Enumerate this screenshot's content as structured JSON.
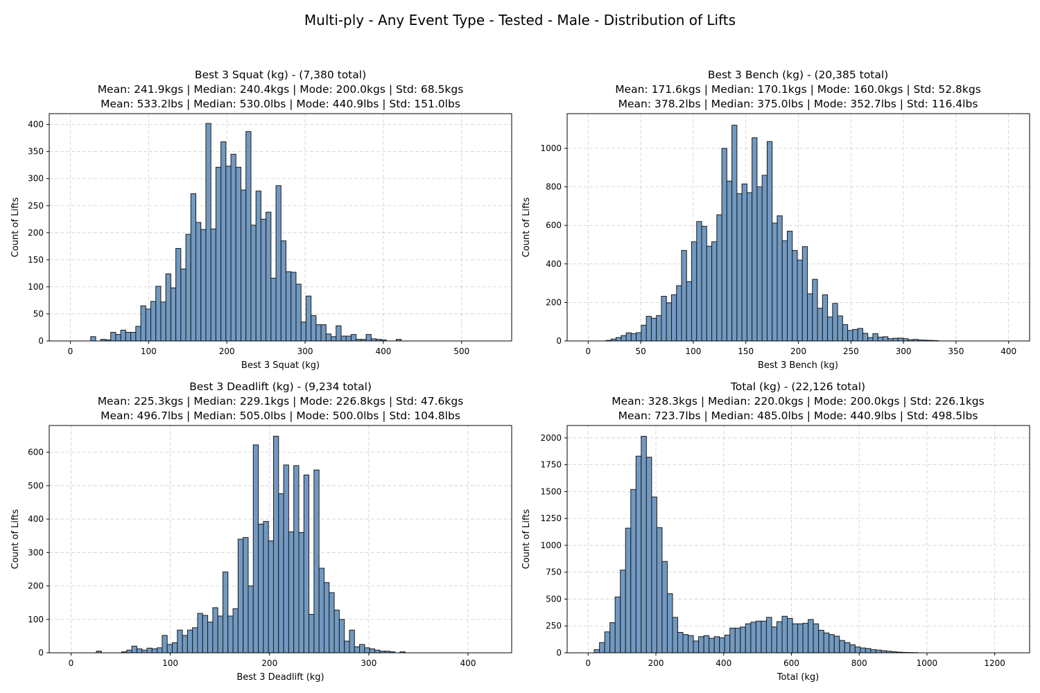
{
  "suptitle": "Multi-ply - Any Event Type - Tested - Male - Distribution of Lifts",
  "style": {
    "bar_color": "#7199c1",
    "edge_color": "#1a1a1a"
  },
  "chart_data": [
    {
      "type": "bar",
      "title_lines": [
        "Best 3 Squat (kg) - (7,380 total)",
        "Mean: 241.9kgs | Median: 240.4kgs | Mode: 200.0kgs | Std: 68.5kgs",
        "Mean: 533.2lbs | Median: 530.0lbs | Mode: 440.9lbs | Std: 151.0lbs"
      ],
      "xlabel": "Best 3 Squat (kg)",
      "ylabel": "Count of Lifts",
      "xlim": [
        -27,
        564
      ],
      "ylim": [
        0,
        420
      ],
      "xticks": [
        0,
        100,
        200,
        300,
        400,
        500
      ],
      "yticks": [
        0,
        50,
        100,
        150,
        200,
        250,
        300,
        350,
        400
      ],
      "bin_start": 26,
      "bin_width": 6.4,
      "values": [
        8,
        0,
        3,
        2,
        16,
        12,
        20,
        16,
        16,
        27,
        65,
        59,
        73,
        101,
        72,
        124,
        98,
        171,
        133,
        197,
        272,
        219,
        206,
        402,
        207,
        321,
        368,
        323,
        345,
        321,
        279,
        387,
        214,
        277,
        225,
        238,
        116,
        287,
        185,
        128,
        127,
        105,
        35,
        83,
        47,
        30,
        30,
        13,
        8,
        28,
        9,
        9,
        12,
        3,
        3,
        12,
        4,
        3,
        2,
        0,
        0,
        3,
        0,
        0,
        0,
        0,
        0,
        0,
        0,
        0,
        0,
        0,
        0,
        0,
        0,
        0,
        0,
        0,
        0,
        0
      ],
      "grid": true
    },
    {
      "type": "bar",
      "title_lines": [
        "Best 3 Bench (kg) - (20,385 total)",
        "Mean: 171.6kgs | Median: 170.1kgs | Mode: 160.0kgs | Std: 52.8kgs",
        "Mean: 378.2lbs | Median: 375.0lbs | Mode: 352.7lbs | Std: 116.4lbs"
      ],
      "xlabel": "Best 3 Bench (kg)",
      "ylabel": "Count of Lifts",
      "xlim": [
        -20,
        420
      ],
      "ylim": [
        0,
        1180
      ],
      "xticks": [
        0,
        50,
        100,
        150,
        200,
        250,
        300,
        350,
        400
      ],
      "yticks": [
        0,
        200,
        400,
        600,
        800,
        1000
      ],
      "bin_start": 17,
      "bin_width": 4.79,
      "values": [
        3,
        10,
        18,
        28,
        42,
        38,
        43,
        82,
        128,
        118,
        132,
        232,
        198,
        240,
        287,
        470,
        308,
        515,
        620,
        595,
        492,
        515,
        655,
        1000,
        830,
        1120,
        765,
        815,
        770,
        1055,
        800,
        860,
        1035,
        612,
        650,
        520,
        570,
        470,
        420,
        490,
        245,
        320,
        170,
        240,
        125,
        195,
        130,
        85,
        55,
        60,
        65,
        40,
        18,
        38,
        20,
        22,
        12,
        14,
        15,
        12,
        6,
        8,
        5,
        4,
        3,
        2,
        0,
        0,
        0,
        0,
        0,
        0,
        0,
        0,
        0,
        0,
        0,
        0,
        0,
        0
      ],
      "grid": true
    },
    {
      "type": "bar",
      "title_lines": [
        "Best 3 Deadlift (kg) - (9,234 total)",
        "Mean: 225.3kgs | Median: 229.1kgs | Mode: 226.8kgs | Std: 47.6kgs",
        "Mean: 496.7lbs | Median: 505.0lbs | Mode: 500.0lbs | Std: 104.8lbs"
      ],
      "xlabel": "Best 3 Deadlift (kg)",
      "ylabel": "Count of Lifts",
      "xlim": [
        -22,
        444
      ],
      "ylim": [
        0,
        680
      ],
      "xticks": [
        0,
        100,
        200,
        300,
        400
      ],
      "yticks": [
        0,
        100,
        200,
        300,
        400,
        500,
        600
      ],
      "bin_start": 0,
      "bin_width": 5.1,
      "values": [
        0,
        0,
        0,
        0,
        0,
        5,
        0,
        0,
        0,
        0,
        3,
        8,
        20,
        12,
        8,
        14,
        12,
        15,
        52,
        25,
        30,
        68,
        52,
        68,
        75,
        118,
        112,
        92,
        135,
        110,
        242,
        110,
        132,
        340,
        345,
        200,
        622,
        385,
        393,
        335,
        648,
        476,
        562,
        362,
        560,
        360,
        532,
        115,
        547,
        253,
        210,
        180,
        128,
        100,
        35,
        68,
        18,
        25,
        15,
        12,
        8,
        5,
        5,
        3,
        0,
        3,
        0,
        0,
        0,
        0,
        0,
        0,
        0,
        0,
        0,
        0,
        0,
        0,
        0,
        0
      ],
      "grid": true
    },
    {
      "type": "bar",
      "title_lines": [
        "Total (kg) - (22,126 total)",
        "Mean: 328.3kgs | Median: 220.0kgs | Mode: 200.0kgs | Std: 226.1kgs",
        "Mean: 723.7lbs | Median: 485.0lbs | Mode: 440.9lbs | Std: 498.5lbs"
      ],
      "xlabel": "Total (kg)",
      "ylabel": "Count of Lifts",
      "xlim": [
        -62,
        1303
      ],
      "ylim": [
        0,
        2115
      ],
      "xticks": [
        0,
        200,
        400,
        600,
        800,
        1000,
        1200
      ],
      "yticks": [
        0,
        250,
        500,
        750,
        1000,
        1250,
        1500,
        1750,
        2000
      ],
      "bin_start": 18,
      "bin_width": 15.4,
      "values": [
        30,
        95,
        195,
        280,
        520,
        770,
        1160,
        1520,
        1830,
        2015,
        1820,
        1450,
        1165,
        850,
        550,
        330,
        190,
        170,
        160,
        110,
        150,
        160,
        135,
        150,
        140,
        165,
        230,
        230,
        240,
        270,
        285,
        295,
        295,
        330,
        240,
        290,
        340,
        320,
        270,
        270,
        275,
        310,
        270,
        210,
        185,
        170,
        155,
        115,
        95,
        75,
        55,
        45,
        40,
        30,
        25,
        20,
        15,
        10,
        6,
        4,
        3,
        2,
        0,
        0,
        0,
        0,
        0,
        0,
        0,
        0,
        0,
        0,
        0,
        0,
        0,
        0,
        0,
        0,
        0,
        0
      ],
      "grid": true
    }
  ]
}
